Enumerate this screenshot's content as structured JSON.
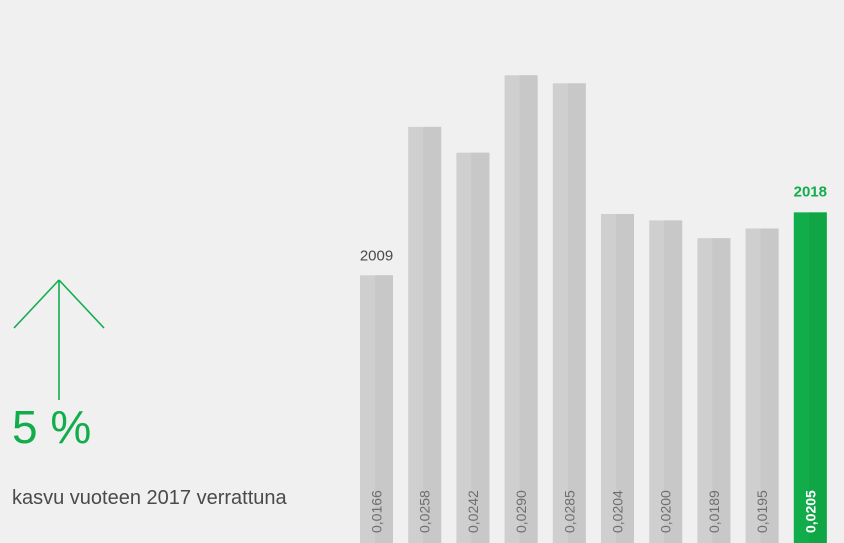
{
  "summary": {
    "growth_value": "5 %",
    "growth_caption": "kasvu vuoteen 2017 verrattuna"
  },
  "colors": {
    "background": "#eff0ef",
    "bar": "#cfcfcf",
    "bar_shade": "#c3c3c3",
    "highlight": "#12ad4b",
    "highlight_shade": "#0fa043",
    "text": "#4a4a4a",
    "value_label": "#6e6e6e"
  },
  "icons": {
    "growth": "arrow-up-icon"
  },
  "chart_data": {
    "type": "bar",
    "title": "",
    "xlabel": "",
    "ylabel": "",
    "start_label": "2009",
    "end_label": "2018",
    "values": [
      0.0166,
      0.0258,
      0.0242,
      0.029,
      0.0285,
      0.0204,
      0.02,
      0.0189,
      0.0195,
      0.0205
    ],
    "value_labels": [
      "0,0166",
      "0,0258",
      "0,0242",
      "0,0290",
      "0,0285",
      "0,0204",
      "0,0200",
      "0,0189",
      "0,0195",
      "0,0205"
    ],
    "highlight_index": 9,
    "ylim": [
      0,
      0.031
    ],
    "grid": false,
    "legend": "none"
  }
}
